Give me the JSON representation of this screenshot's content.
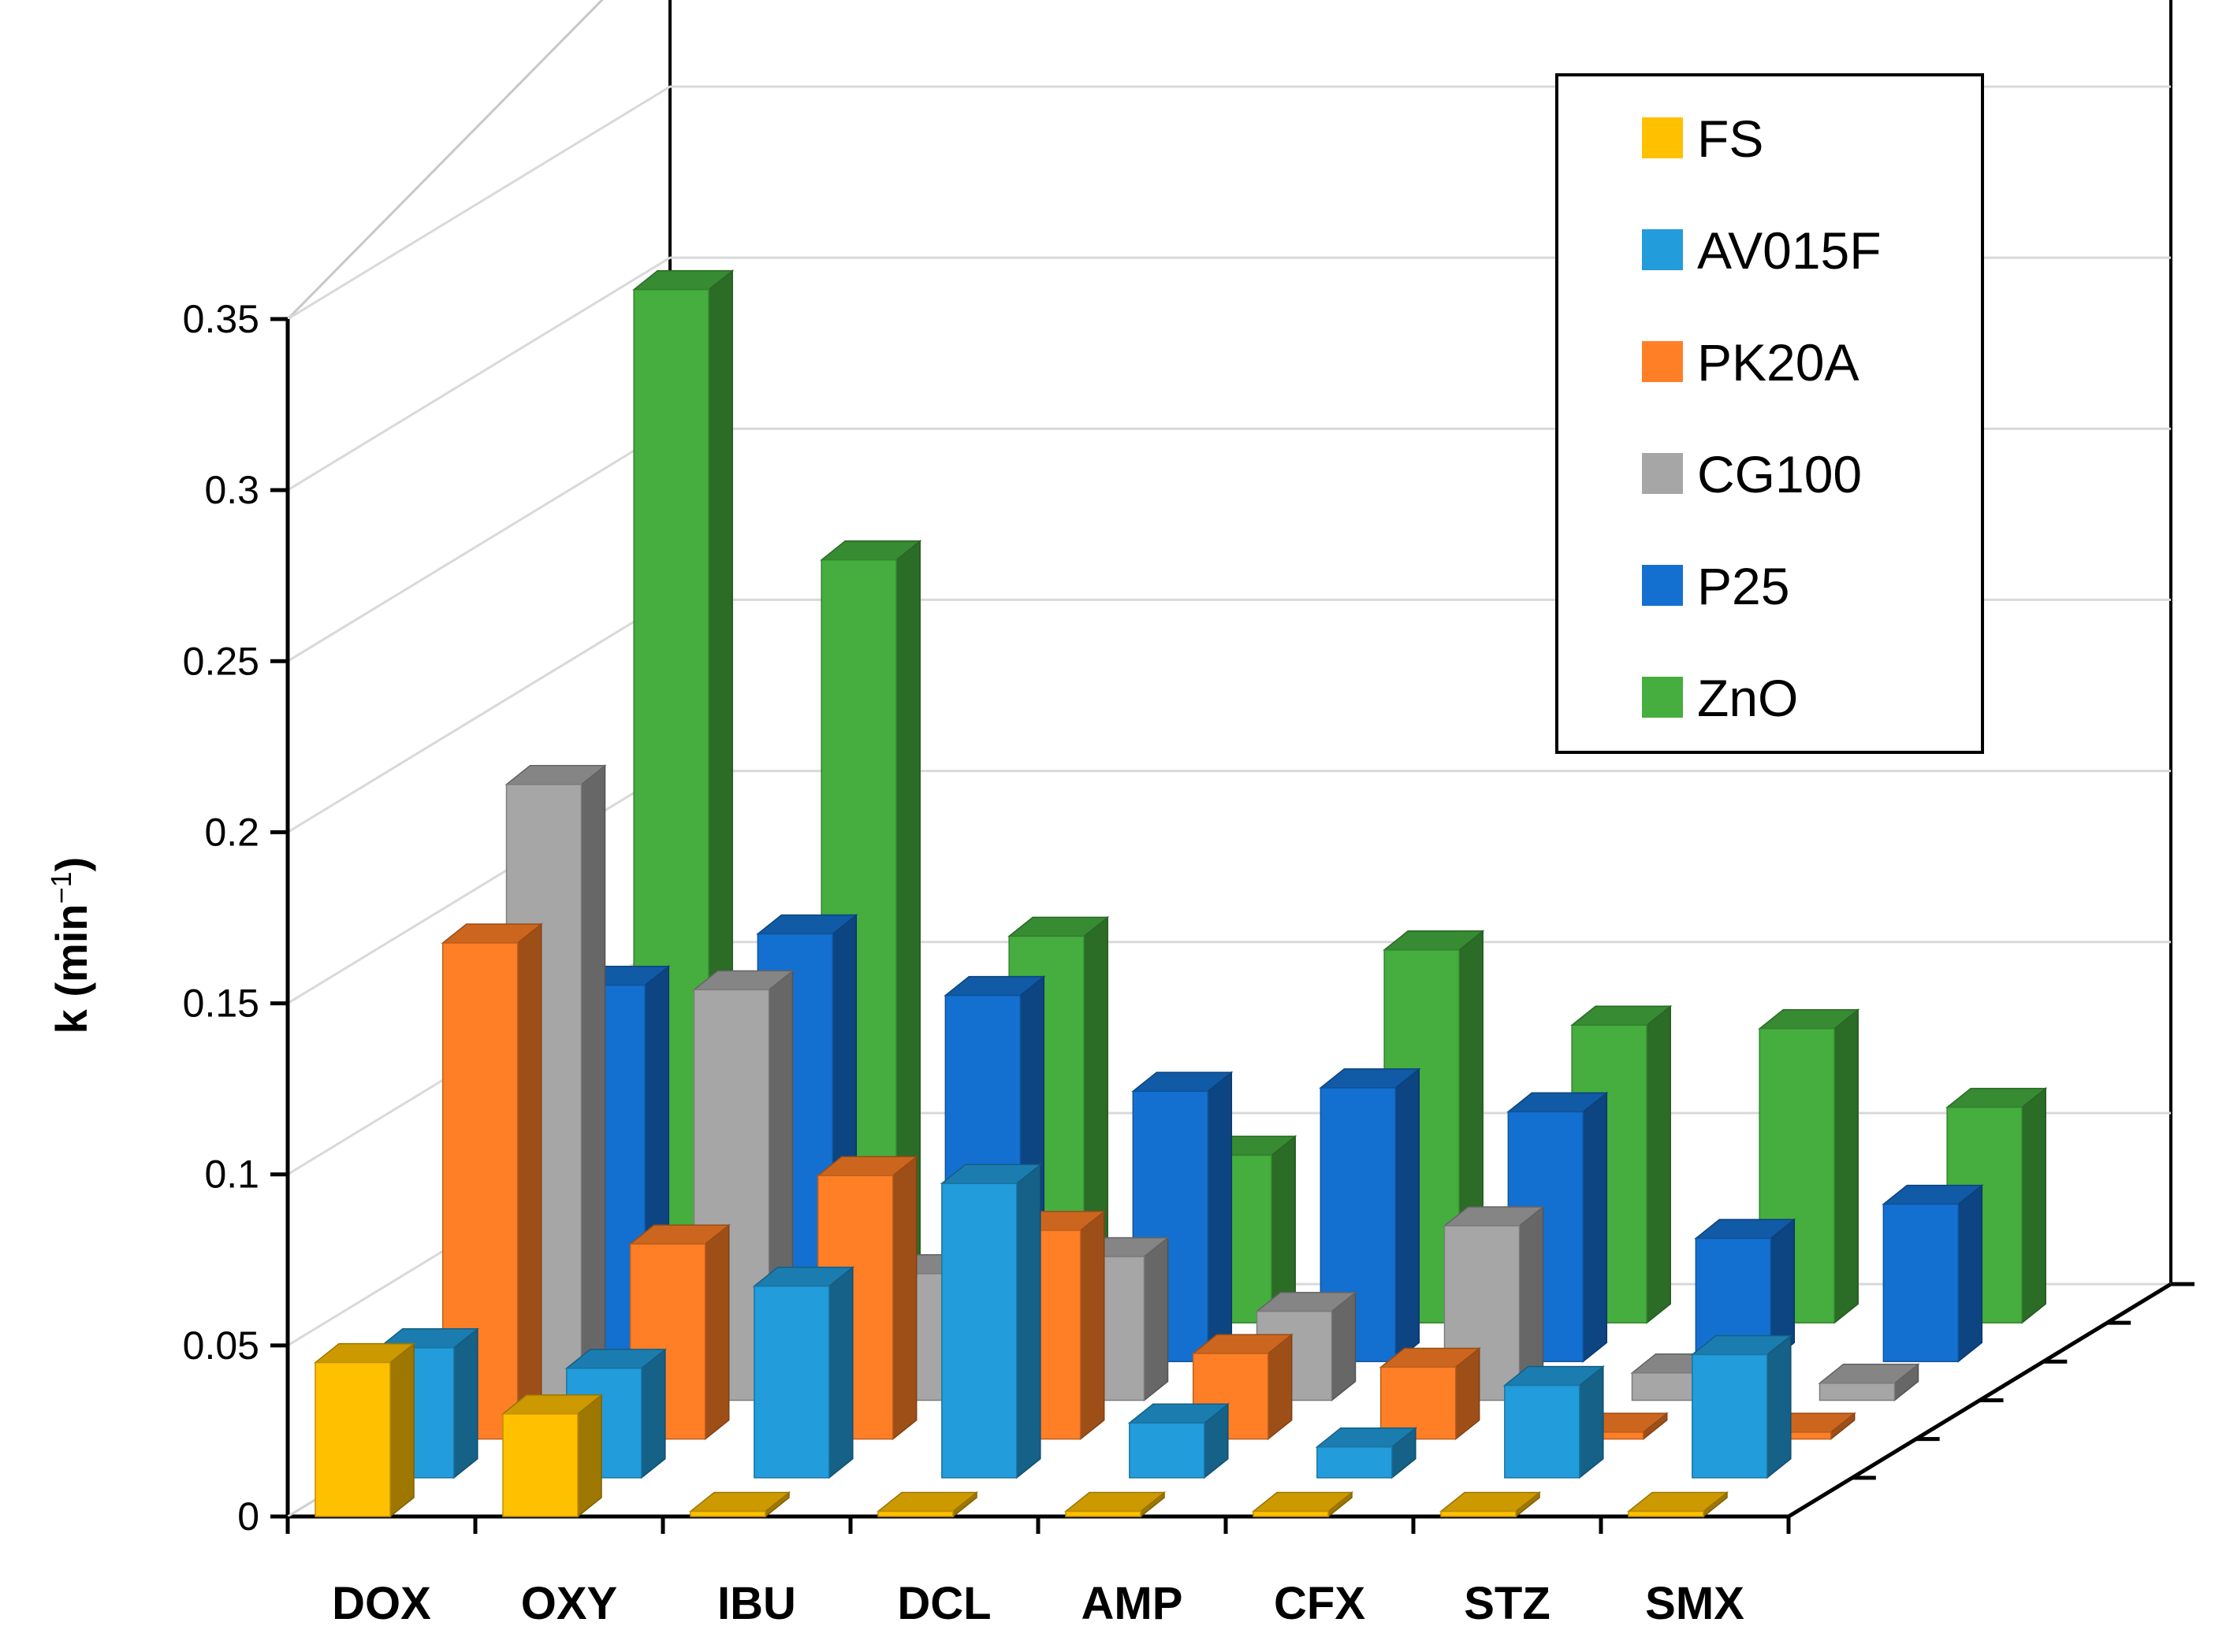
{
  "chart_data": {
    "type": "bar",
    "subtype": "3d-column",
    "title": "",
    "xlabel": "",
    "ylabel": "k (min",
    "ylabel_sup": "−1",
    "ylabel_suffix": ")",
    "ylim": [
      0,
      0.35
    ],
    "yticks": [
      "0",
      "0.05",
      "0.1",
      "0.15",
      "0.2",
      "0.25",
      "0.3",
      "0.35"
    ],
    "categories": [
      "DOX",
      "OXY",
      "IBU",
      "DCL",
      "AMP",
      "CFX",
      "STZ",
      "SMX"
    ],
    "grid": true,
    "legend_position": "top-right",
    "series": [
      {
        "name": "FS",
        "color": "#FFC000",
        "values": [
          0.045,
          0.03,
          0.0,
          0.0,
          0.001,
          0.0,
          0.0,
          0.0
        ]
      },
      {
        "name": "AV015F",
        "color": "#229CDB",
        "values": [
          0.038,
          0.032,
          0.056,
          0.086,
          0.016,
          0.009,
          0.027,
          0.036
        ]
      },
      {
        "name": "PK20A",
        "color": "#FF7F27",
        "values": [
          0.145,
          0.057,
          0.077,
          0.061,
          0.025,
          0.021,
          0.002,
          0.002
        ]
      },
      {
        "name": "CG100",
        "color": "#A6A6A6",
        "values": [
          0.18,
          0.12,
          0.037,
          0.042,
          0.026,
          0.051,
          0.008,
          0.005
        ]
      },
      {
        "name": "P25",
        "color": "#1470D0",
        "values": [
          0.11,
          0.125,
          0.107,
          0.079,
          0.08,
          0.073,
          0.036,
          0.046
        ]
      },
      {
        "name": "ZnO",
        "color": "#45AE3E",
        "values": [
          0.302,
          0.223,
          0.113,
          0.049,
          0.109,
          0.087,
          0.086,
          0.063
        ]
      }
    ]
  }
}
